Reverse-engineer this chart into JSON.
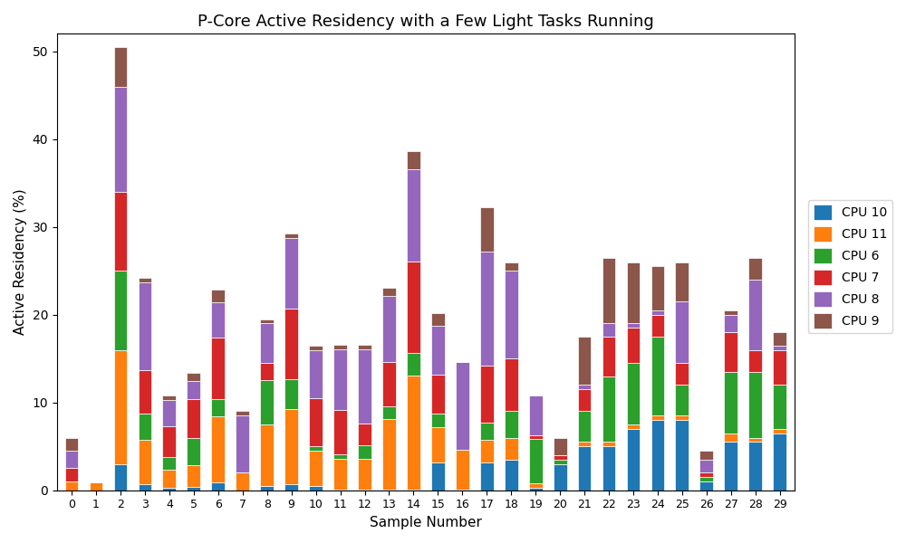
{
  "title": "P-Core Active Residency with a Few Light Tasks Running",
  "xlabel": "Sample Number",
  "ylabel": "Active Residency (%)",
  "categories": [
    0,
    1,
    2,
    3,
    4,
    5,
    6,
    7,
    8,
    9,
    10,
    11,
    12,
    13,
    14,
    15,
    16,
    17,
    18,
    19,
    20,
    21,
    22,
    23,
    24,
    25,
    26,
    27,
    28,
    29
  ],
  "cpu_labels": [
    "CPU 10",
    "CPU 11",
    "CPU 6",
    "CPU 7",
    "CPU 8",
    "CPU 9"
  ],
  "cpu_colors": [
    "#1f77b4",
    "#ff7f0e",
    "#2ca02c",
    "#d62728",
    "#9467bd",
    "#8c564b"
  ],
  "data": {
    "CPU 10": [
      0.0,
      0.0,
      3.0,
      0.7,
      0.3,
      0.4,
      0.9,
      0.0,
      0.5,
      0.7,
      0.5,
      0.1,
      0.1,
      0.1,
      0.1,
      3.2,
      0.1,
      3.2,
      3.5,
      0.3,
      3.0,
      5.0,
      5.0,
      7.0,
      8.0,
      8.0,
      1.0,
      5.5,
      5.5,
      6.5
    ],
    "CPU 11": [
      1.0,
      0.9,
      13.0,
      5.0,
      2.0,
      2.5,
      7.5,
      2.0,
      7.0,
      8.5,
      4.0,
      3.5,
      3.5,
      8.0,
      13.0,
      4.0,
      4.5,
      2.5,
      2.5,
      0.5,
      0.0,
      0.5,
      0.5,
      0.5,
      0.5,
      0.5,
      0.0,
      1.0,
      0.5,
      0.5
    ],
    "CPU 6": [
      0.0,
      0.0,
      9.0,
      3.0,
      1.5,
      3.0,
      2.0,
      0.0,
      5.0,
      3.5,
      0.5,
      0.5,
      1.5,
      1.5,
      2.5,
      1.5,
      0.0,
      2.0,
      3.0,
      5.0,
      0.5,
      3.5,
      7.5,
      7.0,
      9.0,
      3.5,
      0.5,
      7.0,
      7.5,
      5.0
    ],
    "CPU 7": [
      1.5,
      0.0,
      9.0,
      5.0,
      3.5,
      4.5,
      7.0,
      0.0,
      2.0,
      8.0,
      5.5,
      5.0,
      2.5,
      5.0,
      10.5,
      4.5,
      0.0,
      6.5,
      6.0,
      0.5,
      0.5,
      2.5,
      4.5,
      4.0,
      2.5,
      2.5,
      0.5,
      4.5,
      2.5,
      4.0
    ],
    "CPU 8": [
      2.0,
      0.0,
      12.0,
      10.0,
      3.0,
      2.0,
      4.0,
      6.5,
      4.5,
      8.0,
      5.5,
      7.0,
      8.5,
      7.5,
      10.5,
      5.5,
      10.0,
      13.0,
      10.0,
      4.5,
      0.0,
      0.5,
      1.5,
      0.5,
      0.5,
      7.0,
      1.5,
      2.0,
      8.0,
      0.5
    ],
    "CPU 9": [
      1.5,
      0.0,
      4.5,
      0.5,
      0.5,
      1.0,
      1.5,
      0.5,
      0.5,
      0.5,
      0.5,
      0.5,
      0.5,
      1.0,
      2.0,
      1.5,
      0.0,
      5.0,
      1.0,
      0.0,
      2.0,
      5.5,
      7.5,
      7.0,
      5.0,
      4.5,
      1.0,
      0.5,
      2.5,
      1.5
    ]
  },
  "figsize": [
    10,
    6
  ],
  "dpi": 100
}
